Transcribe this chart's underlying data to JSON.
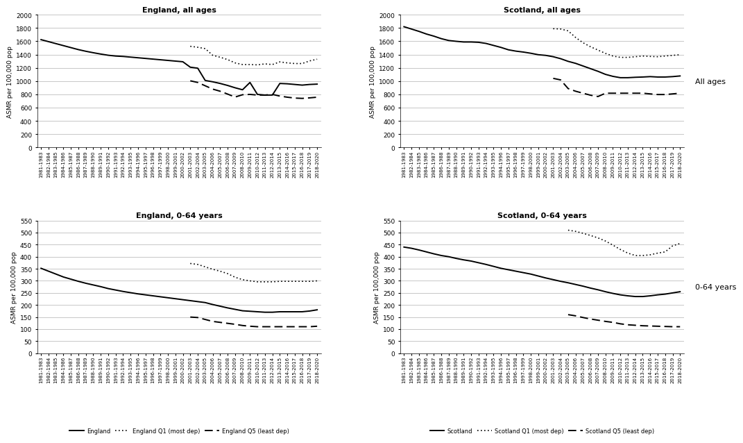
{
  "x_labels": [
    "1981-1983",
    "1982-1984",
    "1983-1985",
    "1984-1986",
    "1985-1987",
    "1986-1988",
    "1987-1989",
    "1988-1990",
    "1989-1991",
    "1990-1992",
    "1991-1993",
    "1992-1994",
    "1993-1995",
    "1994-1996",
    "1995-1997",
    "1996-1998",
    "1997-1999",
    "1998-2000",
    "1999-2001",
    "2000-2002",
    "2001-2003",
    "2002-2004",
    "2003-2005",
    "2004-2006",
    "2005-2007",
    "2006-2008",
    "2007-2009",
    "2008-2010",
    "2009-2011",
    "2010-2012",
    "2011-2013",
    "2012-2014",
    "2013-2015",
    "2014-2016",
    "2015-2017",
    "2016-2018",
    "2017-2019",
    "2018-2020"
  ],
  "england_all_overall": [
    1625,
    1595,
    1565,
    1535,
    1505,
    1475,
    1450,
    1428,
    1408,
    1390,
    1378,
    1372,
    1362,
    1352,
    1342,
    1332,
    1322,
    1312,
    1302,
    1292,
    1210,
    1195,
    1010,
    990,
    965,
    935,
    900,
    870,
    980,
    800,
    790,
    790,
    965,
    960,
    950,
    940,
    950,
    955
  ],
  "england_all_Q1": [
    null,
    null,
    null,
    null,
    null,
    null,
    null,
    null,
    null,
    null,
    null,
    null,
    null,
    null,
    null,
    null,
    null,
    null,
    null,
    null,
    1525,
    1510,
    1490,
    1390,
    1360,
    1325,
    1275,
    1250,
    1250,
    1245,
    1260,
    1250,
    1290,
    1275,
    1265,
    1265,
    1305,
    1330
  ],
  "england_all_Q5": [
    null,
    null,
    null,
    null,
    null,
    null,
    null,
    null,
    null,
    null,
    null,
    null,
    null,
    null,
    null,
    null,
    null,
    null,
    null,
    null,
    1005,
    980,
    930,
    880,
    848,
    805,
    760,
    795,
    800,
    790,
    790,
    800,
    775,
    758,
    745,
    740,
    748,
    758
  ],
  "scotland_all_overall": [
    1820,
    1785,
    1750,
    1710,
    1678,
    1640,
    1612,
    1600,
    1590,
    1590,
    1585,
    1568,
    1538,
    1508,
    1472,
    1452,
    1438,
    1420,
    1398,
    1388,
    1368,
    1338,
    1298,
    1268,
    1228,
    1188,
    1148,
    1102,
    1072,
    1052,
    1052,
    1058,
    1062,
    1068,
    1062,
    1062,
    1068,
    1078
  ],
  "scotland_all_Q1": [
    null,
    null,
    null,
    null,
    null,
    null,
    null,
    null,
    null,
    null,
    null,
    null,
    null,
    null,
    null,
    null,
    null,
    null,
    null,
    null,
    1790,
    1785,
    1758,
    1658,
    1578,
    1518,
    1468,
    1418,
    1378,
    1358,
    1358,
    1368,
    1378,
    1372,
    1368,
    1378,
    1388,
    1398
  ],
  "scotland_all_Q5": [
    null,
    null,
    null,
    null,
    null,
    null,
    null,
    null,
    null,
    null,
    null,
    null,
    null,
    null,
    null,
    null,
    null,
    null,
    null,
    null,
    1042,
    1018,
    888,
    848,
    818,
    788,
    768,
    818,
    818,
    818,
    818,
    818,
    818,
    808,
    798,
    798,
    808,
    818
  ],
  "england_064_overall": [
    352,
    340,
    328,
    316,
    307,
    298,
    290,
    283,
    276,
    268,
    262,
    256,
    251,
    246,
    242,
    238,
    234,
    230,
    226,
    222,
    218,
    214,
    210,
    202,
    195,
    188,
    182,
    176,
    174,
    172,
    170,
    170,
    172,
    172,
    172,
    172,
    175,
    180
  ],
  "england_064_Q1": [
    null,
    null,
    null,
    null,
    null,
    null,
    null,
    null,
    null,
    null,
    null,
    null,
    null,
    null,
    null,
    null,
    null,
    null,
    null,
    null,
    372,
    368,
    358,
    348,
    340,
    330,
    315,
    305,
    300,
    296,
    296,
    296,
    298,
    298,
    298,
    298,
    298,
    300
  ],
  "england_064_Q5": [
    null,
    null,
    null,
    null,
    null,
    null,
    null,
    null,
    null,
    null,
    null,
    null,
    null,
    null,
    null,
    null,
    null,
    null,
    null,
    null,
    150,
    148,
    140,
    132,
    128,
    124,
    120,
    115,
    112,
    110,
    110,
    110,
    110,
    110,
    110,
    110,
    110,
    112
  ],
  "scotland_064_overall": [
    440,
    435,
    428,
    420,
    412,
    405,
    400,
    393,
    387,
    382,
    375,
    368,
    360,
    352,
    346,
    340,
    334,
    328,
    320,
    312,
    305,
    298,
    292,
    285,
    278,
    270,
    263,
    255,
    248,
    242,
    238,
    235,
    235,
    238,
    242,
    245,
    250,
    255
  ],
  "scotland_064_Q1": [
    null,
    null,
    null,
    null,
    null,
    null,
    null,
    null,
    null,
    null,
    null,
    null,
    null,
    null,
    null,
    null,
    null,
    null,
    null,
    null,
    null,
    null,
    510,
    505,
    497,
    488,
    478,
    465,
    448,
    430,
    415,
    405,
    405,
    408,
    415,
    420,
    445,
    455
  ],
  "scotland_064_Q5": [
    null,
    null,
    null,
    null,
    null,
    null,
    null,
    null,
    null,
    null,
    null,
    null,
    null,
    null,
    null,
    null,
    null,
    null,
    null,
    null,
    null,
    null,
    160,
    155,
    148,
    142,
    137,
    132,
    128,
    122,
    118,
    116,
    114,
    113,
    112,
    111,
    110,
    110
  ],
  "ylabel_all": "ASMR per 100,000 pop",
  "ylabel_064": "ASMR per 100,000 pop",
  "title_eng_all": "England, all ages",
  "title_sco_all": "Scotland, all ages",
  "title_eng_064": "England, 0-64 years",
  "title_sco_064": "Scotland, 0-64 years",
  "ylim_all": [
    0,
    2000
  ],
  "ylim_064": [
    0,
    550
  ],
  "yticks_all": [
    0,
    200,
    400,
    600,
    800,
    1000,
    1200,
    1400,
    1600,
    1800,
    2000
  ],
  "yticks_064": [
    0,
    50,
    100,
    150,
    200,
    250,
    300,
    350,
    400,
    450,
    500,
    550
  ],
  "legend_eng_all": [
    "England",
    "England Q1 (most dep)",
    "England Q5 (least dep)"
  ],
  "legend_sco_all": [
    "Scotland",
    "Scotland Q1 (most dep)",
    "Scotland Q5 (least dep)"
  ],
  "legend_eng_064": [
    "England",
    "England Q1 (most dep)",
    "England Q5 (least dep)"
  ],
  "legend_sco_064": [
    "Scotland",
    "Scotland Q1 (most dep)",
    "Scotland Q5 (least dep)"
  ],
  "side_label_all": "All ages",
  "side_label_064": "0-64 years",
  "line_color": "#000000",
  "bg_color": "#ffffff",
  "grid_color": "#b0b0b0"
}
